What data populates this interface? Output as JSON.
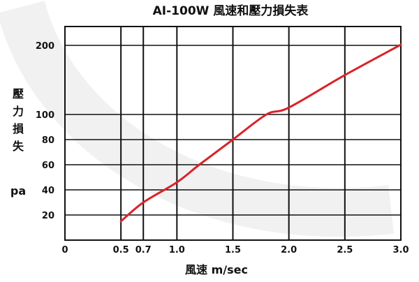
{
  "colors": {
    "curve": "#d9232a",
    "grid": "#111111",
    "text": "#111111"
  },
  "chart_data": {
    "type": "line",
    "title": "AI-100W 風速和壓力損失表",
    "xlabel": "風速 m/sec",
    "ylabel": [
      "壓",
      "力",
      "損",
      "失"
    ],
    "yunit": "pa",
    "xlim": [
      0,
      3.0
    ],
    "x_ticks": [
      0,
      0.5,
      0.7,
      1.0,
      1.5,
      2.0,
      2.5,
      3.0
    ],
    "x_tick_labels": [
      "0",
      "0.5",
      "0.7",
      "1.0",
      "1.5",
      "2.0",
      "2.5",
      "3.0"
    ],
    "y_ticks": [
      20,
      40,
      60,
      80,
      100,
      200
    ],
    "y_tick_labels": [
      "20",
      "40",
      "60",
      "80",
      "100",
      "200"
    ],
    "grid": true,
    "series": [
      {
        "x": [
          0.5,
          0.7,
          1.0,
          1.2,
          1.5,
          1.8,
          2.0,
          2.5,
          3.0
        ],
        "y": [
          15,
          30,
          46,
          60,
          80,
          100,
          110,
          157,
          201
        ]
      }
    ]
  }
}
